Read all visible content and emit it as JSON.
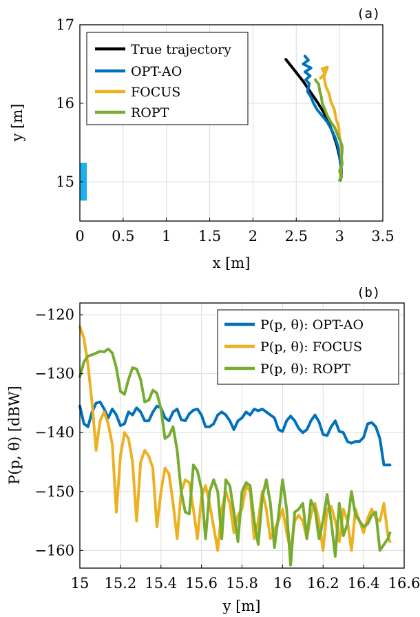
{
  "colors": {
    "true_trajectory": "#000000",
    "opt_ao": "#0072BD",
    "focus": "#EDB120",
    "ropt": "#77AC30",
    "ris": "#1EAFED"
  },
  "chart_data": [
    {
      "type": "line",
      "panel_label": "(a)",
      "xlabel": "x [m]",
      "ylabel": "y [m]",
      "xlim": [
        0,
        3.5
      ],
      "ylim": [
        14.5,
        17
      ],
      "xticks": [
        0,
        0.5,
        1,
        1.5,
        2,
        2.5,
        3,
        3.5
      ],
      "xtick_labels": [
        "0",
        "0.5",
        "1",
        "1.5",
        "2",
        "2.5",
        "3",
        "3.5"
      ],
      "yticks": [
        15,
        16,
        17
      ],
      "ytick_labels": [
        "15",
        "16",
        "17"
      ],
      "grid": true,
      "legend": "top-left",
      "legend_entries": [
        "True trajectory",
        "OPT-AO",
        "FOCUS",
        "ROPT"
      ],
      "ris_segment": {
        "x": 0.04,
        "y": [
          14.76,
          15.24
        ]
      },
      "series": [
        {
          "name": "True trajectory",
          "color": "#000000",
          "x": [
            2.38,
            2.48,
            2.58,
            2.66,
            2.74,
            2.82,
            2.88,
            2.93,
            2.97,
            3.0,
            3.02,
            3.02,
            3.01
          ],
          "y": [
            16.56,
            16.42,
            16.28,
            16.15,
            16.02,
            15.88,
            15.74,
            15.6,
            15.46,
            15.32,
            15.18,
            15.06,
            15.02
          ]
        },
        {
          "name": "OPT-AO",
          "color": "#0072BD",
          "x": [
            2.6,
            2.64,
            2.58,
            2.67,
            2.6,
            2.66,
            2.61,
            2.65,
            2.64,
            2.63,
            2.67,
            2.7,
            2.74,
            2.8,
            2.86,
            2.91,
            2.95,
            2.98,
            3.0,
            3.01,
            3.02,
            3.01
          ],
          "y": [
            16.6,
            16.55,
            16.5,
            16.45,
            16.4,
            16.35,
            16.3,
            16.25,
            16.2,
            16.15,
            16.08,
            16.0,
            15.92,
            15.84,
            15.76,
            15.66,
            15.56,
            15.46,
            15.36,
            15.24,
            15.12,
            15.02
          ]
        },
        {
          "name": "FOCUS",
          "color": "#EDB120",
          "x": [
            2.78,
            2.83,
            2.8,
            2.86,
            2.82,
            2.84,
            2.88,
            2.9,
            2.94,
            2.96,
            2.99,
            3.0,
            3.02,
            3.02,
            3.03,
            3.01,
            3.02,
            3.0
          ],
          "y": [
            16.32,
            16.38,
            16.44,
            16.46,
            16.34,
            16.22,
            16.12,
            16.02,
            15.92,
            15.8,
            15.7,
            15.58,
            15.46,
            15.34,
            15.24,
            15.14,
            15.06,
            15.02
          ]
        },
        {
          "name": "ROPT",
          "color": "#77AC30",
          "x": [
            2.72,
            2.76,
            2.77,
            2.79,
            2.8,
            2.83,
            2.86,
            2.9,
            2.94,
            2.97,
            3.0,
            3.03,
            3.03,
            3.02,
            3.03,
            3.0,
            3.02,
            3.0
          ],
          "y": [
            16.3,
            16.24,
            16.16,
            16.08,
            16.0,
            15.92,
            15.84,
            15.76,
            15.7,
            15.62,
            15.54,
            15.46,
            15.38,
            15.3,
            15.22,
            15.14,
            15.06,
            15.02
          ]
        }
      ]
    },
    {
      "type": "line",
      "panel_label": "(b)",
      "xlabel": "y [m]",
      "ylabel": "P(p, θ) [dBW]",
      "xlim": [
        15,
        16.6
      ],
      "ylim": [
        -163,
        -118
      ],
      "xticks": [
        15,
        15.2,
        15.4,
        15.6,
        15.8,
        16,
        16.2,
        16.4,
        16.6
      ],
      "xtick_labels": [
        "15",
        "15.2",
        "15.4",
        "15.6",
        "15.8",
        "16",
        "16.2",
        "16.4",
        "16.6"
      ],
      "yticks": [
        -120,
        -130,
        -140,
        -150,
        -160
      ],
      "ytick_labels": [
        "−120",
        "−130",
        "−140",
        "−150",
        "−160"
      ],
      "grid": true,
      "legend": "top-right",
      "legend_entries": [
        "P(p, θ): OPT-AO",
        "P(p, θ): FOCUS",
        "P(p, θ): ROPT"
      ],
      "series": [
        {
          "name": "P(p, θ): OPT-AO",
          "color": "#0072BD",
          "x": [
            15.0,
            15.02,
            15.04,
            15.06,
            15.08,
            15.1,
            15.12,
            15.14,
            15.16,
            15.18,
            15.2,
            15.22,
            15.24,
            15.26,
            15.28,
            15.3,
            15.32,
            15.34,
            15.36,
            15.38,
            15.4,
            15.42,
            15.44,
            15.46,
            15.48,
            15.5,
            15.52,
            15.54,
            15.56,
            15.58,
            15.6,
            15.62,
            15.64,
            15.66,
            15.68,
            15.7,
            15.72,
            15.74,
            15.76,
            15.78,
            15.8,
            15.82,
            15.84,
            15.86,
            15.88,
            15.9,
            15.92,
            15.94,
            15.96,
            15.98,
            16.0,
            16.02,
            16.04,
            16.06,
            16.08,
            16.1,
            16.12,
            16.14,
            16.16,
            16.18,
            16.2,
            16.22,
            16.24,
            16.26,
            16.28,
            16.3,
            16.32,
            16.34,
            16.36,
            16.38,
            16.4,
            16.42,
            16.44,
            16.46,
            16.48,
            16.5,
            16.52,
            16.53
          ],
          "y": [
            -135.5,
            -138.5,
            -139.0,
            -136.5,
            -135.0,
            -134.8,
            -136.0,
            -137.5,
            -136.0,
            -137.0,
            -138.8,
            -138.5,
            -136.5,
            -137.0,
            -135.8,
            -136.5,
            -138.0,
            -138.0,
            -136.5,
            -135.5,
            -135.8,
            -137.5,
            -138.0,
            -136.5,
            -136.0,
            -137.8,
            -138.0,
            -136.8,
            -136.2,
            -136.0,
            -137.0,
            -139.0,
            -139.0,
            -138.5,
            -137.0,
            -136.5,
            -137.0,
            -138.0,
            -139.5,
            -138.0,
            -137.5,
            -136.5,
            -137.0,
            -136.0,
            -136.3,
            -136.0,
            -136.5,
            -137.0,
            -137.5,
            -139.5,
            -139.8,
            -138.0,
            -137.2,
            -138.0,
            -139.3,
            -140.0,
            -139.5,
            -138.0,
            -137.0,
            -138.2,
            -140.3,
            -140.5,
            -139.0,
            -138.0,
            -139.8,
            -140.0,
            -141.5,
            -141.8,
            -141.5,
            -141.5,
            -140.8,
            -138.5,
            -138.3,
            -139.0,
            -141.0,
            -145.5,
            -145.5,
            -145.5
          ]
        },
        {
          "name": "P(p, θ): FOCUS",
          "color": "#EDB120",
          "x": [
            15.0,
            15.02,
            15.04,
            15.06,
            15.08,
            15.1,
            15.12,
            15.14,
            15.16,
            15.18,
            15.2,
            15.22,
            15.24,
            15.26,
            15.28,
            15.3,
            15.32,
            15.34,
            15.36,
            15.38,
            15.4,
            15.42,
            15.44,
            15.46,
            15.48,
            15.5,
            15.52,
            15.54,
            15.56,
            15.58,
            15.6,
            15.62,
            15.64,
            15.66,
            15.68,
            15.7,
            15.72,
            15.74,
            15.76,
            15.78,
            15.8,
            15.82,
            15.84,
            15.86,
            15.88,
            15.9,
            15.92,
            15.94,
            15.96,
            15.98,
            16.0,
            16.02,
            16.04,
            16.06,
            16.08,
            16.1,
            16.12,
            16.14,
            16.16,
            16.18,
            16.2,
            16.22,
            16.24,
            16.26,
            16.28,
            16.3,
            16.32,
            16.34,
            16.36,
            16.38,
            16.4,
            16.42,
            16.44,
            16.46,
            16.48,
            16.5,
            16.52,
            16.53
          ],
          "y": [
            -122.0,
            -124.0,
            -128.5,
            -135.0,
            -143.0,
            -138.0,
            -136.5,
            -138.5,
            -142.0,
            -153.5,
            -144.0,
            -140.0,
            -141.0,
            -145.0,
            -155.0,
            -145.0,
            -143.0,
            -144.0,
            -146.0,
            -156.0,
            -150.0,
            -146.0,
            -147.0,
            -152.0,
            -158.0,
            -150.0,
            -148.0,
            -148.5,
            -153.0,
            -158.0,
            -151.0,
            -149.0,
            -152.0,
            -156.0,
            -160.0,
            -153.0,
            -150.0,
            -152.0,
            -157.0,
            -154.0,
            -153.0,
            -149.0,
            -150.0,
            -158.0,
            -155.0,
            -150.0,
            -153.0,
            -158.0,
            -156.5,
            -155.0,
            -153.0,
            -157.0,
            -160.0,
            -155.0,
            -154.0,
            -155.0,
            -158.0,
            -154.0,
            -152.0,
            -155.0,
            -160.0,
            -153.0,
            -152.5,
            -155.0,
            -158.5,
            -153.0,
            -155.0,
            -160.0,
            -153.0,
            -155.0,
            -157.0,
            -154.5,
            -153.0,
            -154.5,
            -155.0,
            -152.0,
            -157.5,
            -158.5
          ]
        },
        {
          "name": "P(p, θ): ROPT",
          "color": "#77AC30",
          "x": [
            15.0,
            15.02,
            15.04,
            15.06,
            15.08,
            15.1,
            15.12,
            15.14,
            15.16,
            15.18,
            15.2,
            15.22,
            15.24,
            15.26,
            15.28,
            15.3,
            15.32,
            15.34,
            15.36,
            15.38,
            15.4,
            15.42,
            15.44,
            15.46,
            15.48,
            15.5,
            15.52,
            15.54,
            15.56,
            15.58,
            15.6,
            15.62,
            15.64,
            15.66,
            15.68,
            15.7,
            15.72,
            15.74,
            15.76,
            15.78,
            15.8,
            15.82,
            15.84,
            15.86,
            15.88,
            15.9,
            15.92,
            15.94,
            15.96,
            15.98,
            16.0,
            16.02,
            16.04,
            16.06,
            16.08,
            16.1,
            16.12,
            16.14,
            16.16,
            16.18,
            16.2,
            16.22,
            16.24,
            16.26,
            16.28,
            16.3,
            16.32,
            16.34,
            16.36,
            16.38,
            16.4,
            16.42,
            16.44,
            16.46,
            16.48,
            16.5,
            16.52,
            16.53
          ],
          "y": [
            -130.5,
            -128.0,
            -127.0,
            -126.8,
            -126.5,
            -126.2,
            -126.3,
            -125.8,
            -126.5,
            -129.0,
            -133.0,
            -133.5,
            -131.0,
            -129.0,
            -129.2,
            -131.0,
            -134.8,
            -134.5,
            -132.8,
            -133.3,
            -136.0,
            -141.0,
            -140.5,
            -139.0,
            -143.0,
            -150.0,
            -153.5,
            -153.8,
            -145.5,
            -146.5,
            -149.5,
            -158.0,
            -150.0,
            -148.0,
            -150.0,
            -158.0,
            -148.0,
            -149.0,
            -153.5,
            -158.5,
            -150.0,
            -148.5,
            -149.0,
            -155.0,
            -159.0,
            -151.0,
            -148.0,
            -152.0,
            -159.5,
            -154.0,
            -148.0,
            -153.0,
            -162.5,
            -153.5,
            -153.0,
            -152.0,
            -158.0,
            -151.5,
            -153.0,
            -158.0,
            -155.0,
            -150.5,
            -155.0,
            -161.0,
            -152.0,
            -157.5,
            -155.5,
            -150.0,
            -154.0,
            -155.0,
            -156.0,
            -155.5,
            -154.0,
            -153.5,
            -160.0,
            -159.0,
            -158.0,
            -157.0
          ]
        }
      ]
    }
  ]
}
